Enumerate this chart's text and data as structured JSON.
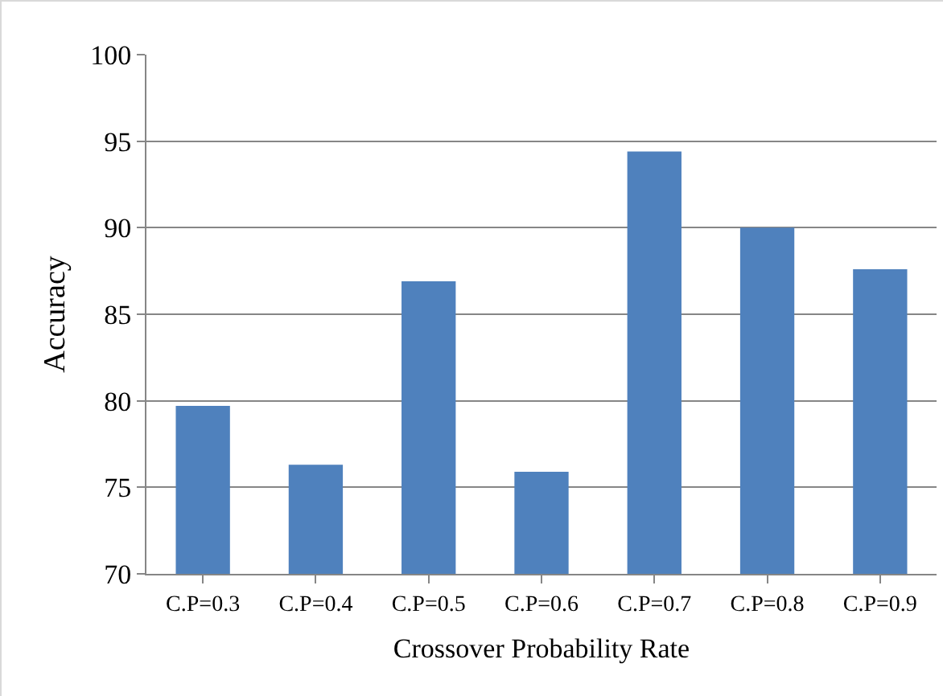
{
  "chart_data": {
    "type": "bar",
    "xlabel": "Crossover Probability Rate",
    "ylabel": "Accuracy",
    "categories": [
      "C.P=0.3",
      "C.P=0.4",
      "C.P=0.5",
      "C.P=0.6",
      "C.P=0.7",
      "C.P=0.8",
      "C.P=0.9"
    ],
    "values": [
      79.7,
      76.3,
      86.9,
      75.9,
      94.4,
      90.0,
      87.6
    ],
    "color": "#4f81bd",
    "ylim": [
      70,
      100
    ],
    "yticks": [
      70,
      75,
      80,
      85,
      90,
      95,
      100
    ],
    "grid": "y",
    "legend": false
  }
}
